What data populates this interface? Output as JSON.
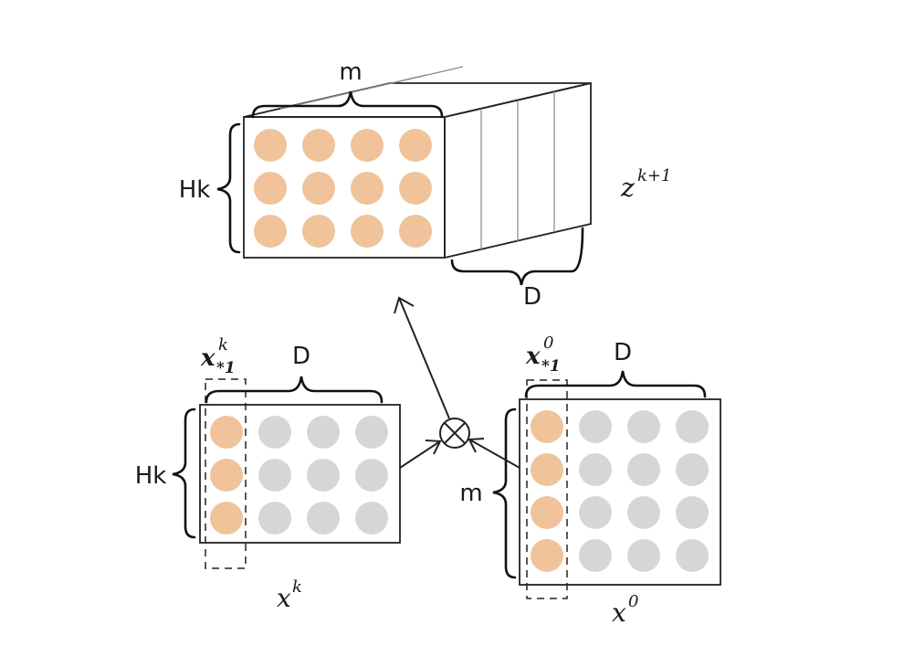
{
  "colors": {
    "orange": "#f0c39a",
    "gray": "#d6d6d6",
    "stroke": "#222222"
  },
  "top_tensor": {
    "name": "z",
    "superscript": "k+1",
    "width_label": "m",
    "height_label": "Hk",
    "depth_label": "D",
    "rows": 3,
    "cols": 4
  },
  "left_matrix": {
    "name": "x",
    "superscript": "k",
    "column_label": "x",
    "column_sup": "k",
    "column_sub": "*1",
    "width_label": "D",
    "height_label": "Hk",
    "rows": 3,
    "cols": 4
  },
  "right_matrix": {
    "name": "x",
    "superscript": "0",
    "column_label": "x",
    "column_sup": "0",
    "column_sub": "*1",
    "width_label": "D",
    "height_label": "m",
    "rows": 4,
    "cols": 4
  },
  "operator": {
    "symbol": "outer-product"
  }
}
